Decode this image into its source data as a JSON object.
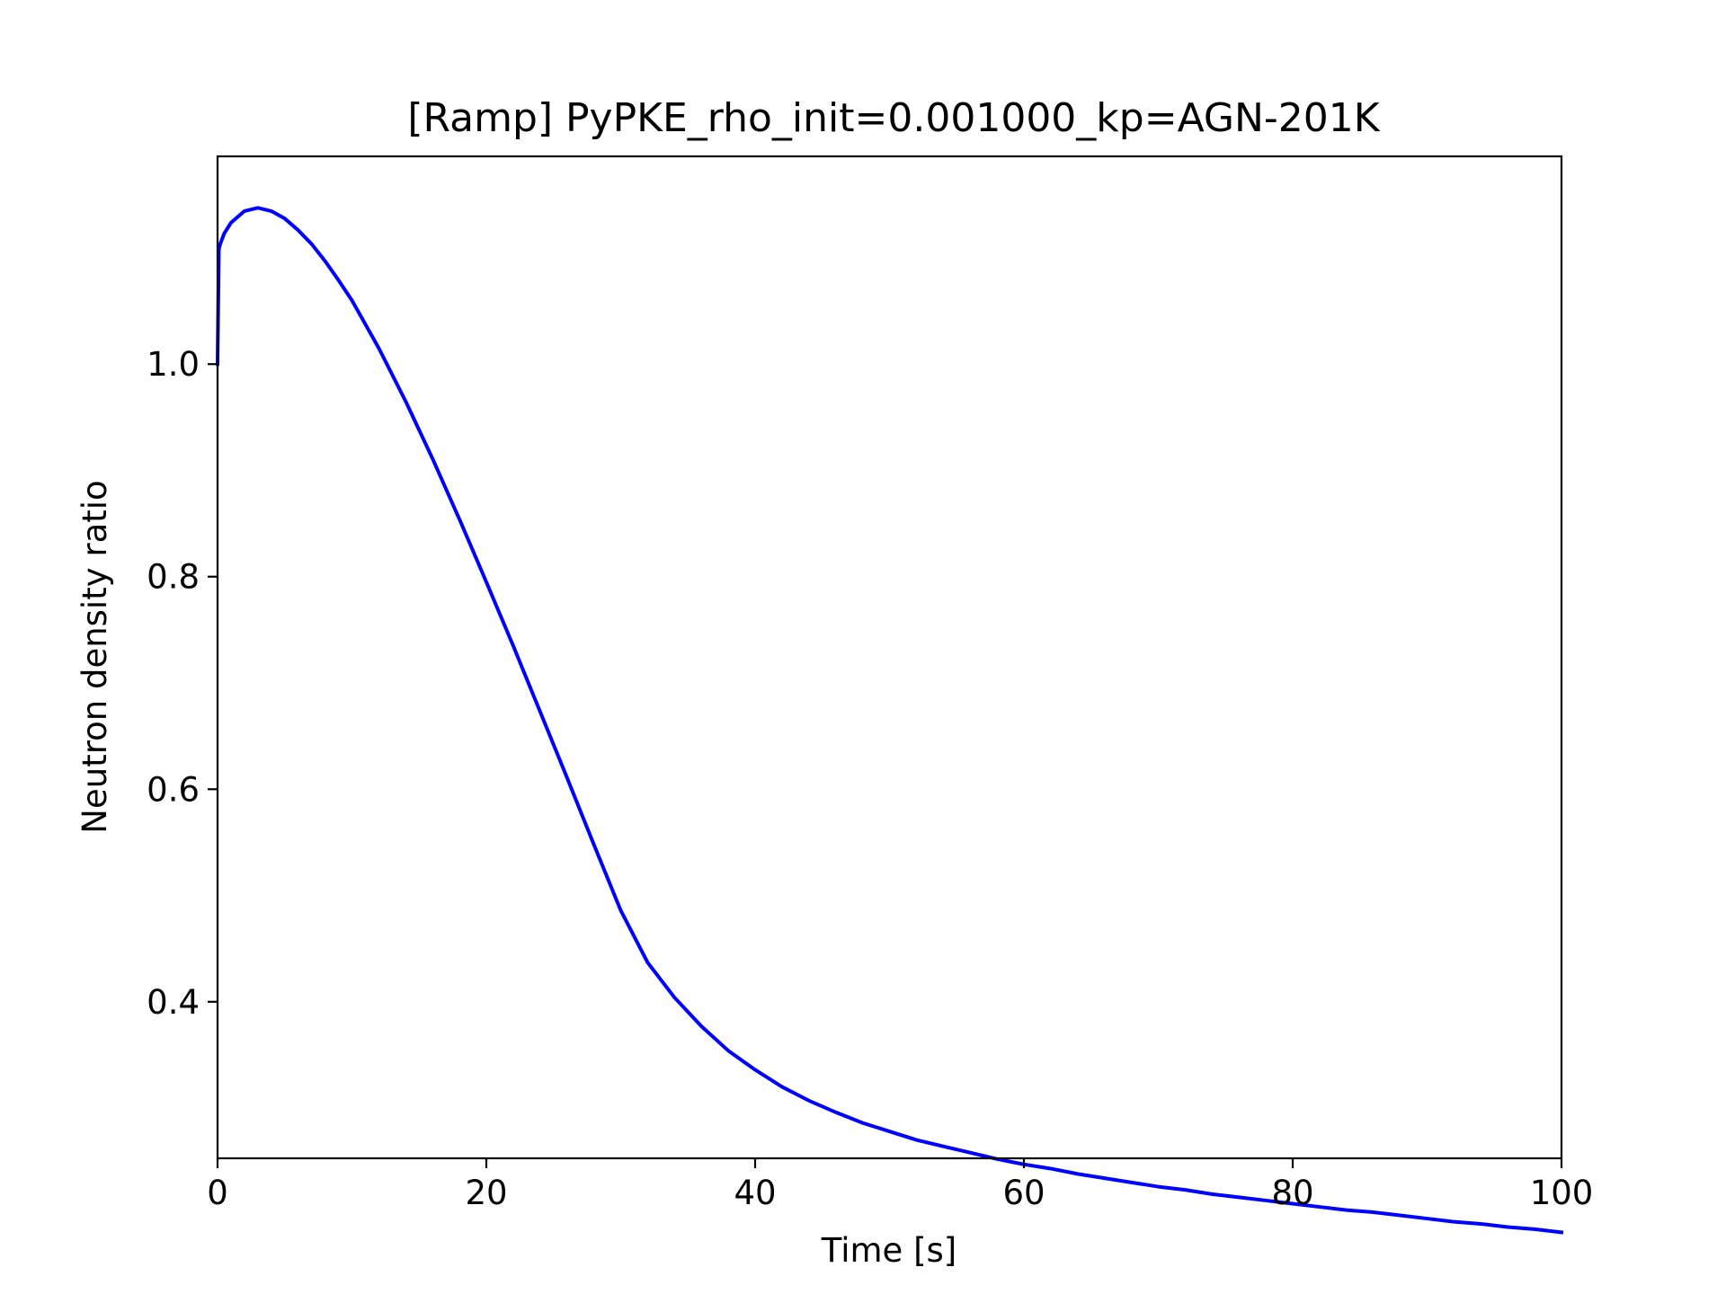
{
  "chart_data": {
    "type": "line",
    "title": "[Ramp] PyPKE_rho_init=0.001000_kp=AGN-201K",
    "xlabel": "Time [s]",
    "ylabel": "Neutron density ratio",
    "xlim": [
      0,
      100
    ],
    "ylim": [
      0.2527,
      1.1955
    ],
    "xticks": [
      0,
      20,
      40,
      60,
      80,
      100
    ],
    "xtick_labels": [
      "0",
      "20",
      "40",
      "60",
      "80",
      "100"
    ],
    "yticks": [
      0.4,
      0.6,
      0.8,
      1.0
    ],
    "ytick_labels": [
      "0.4",
      "0.6",
      "0.8",
      "1.0"
    ],
    "grid": false,
    "series": [
      {
        "color": "#0000ff",
        "x": [
          0,
          0.1,
          0.2,
          0.5,
          1,
          2,
          3,
          4,
          5,
          6,
          7,
          8,
          9,
          10,
          12,
          14,
          16,
          18,
          20,
          22,
          24,
          26,
          28,
          30,
          32,
          34,
          36,
          38,
          40,
          42,
          44,
          46,
          48,
          50,
          52,
          54,
          56,
          58,
          60,
          62,
          64,
          66,
          68,
          70,
          72,
          74,
          76,
          78,
          80,
          82,
          84,
          86,
          88,
          90,
          92,
          94,
          96,
          98,
          100
        ],
        "y": [
          1.0,
          1.108,
          1.113,
          1.123,
          1.133,
          1.144,
          1.147,
          1.144,
          1.137,
          1.126,
          1.113,
          1.097,
          1.079,
          1.06,
          1.015,
          0.965,
          0.911,
          0.854,
          0.795,
          0.735,
          0.673,
          0.611,
          0.548,
          0.486,
          0.437,
          0.404,
          0.377,
          0.354,
          0.336,
          0.32,
          0.307,
          0.296,
          0.286,
          0.278,
          0.27,
          0.264,
          0.258,
          0.252,
          0.247,
          0.243,
          0.238,
          0.234,
          0.23,
          0.226,
          0.223,
          0.219,
          0.216,
          0.213,
          0.21,
          0.207,
          0.204,
          0.202,
          0.199,
          0.196,
          0.193,
          0.191,
          0.188,
          0.186,
          0.183
        ]
      }
    ]
  }
}
